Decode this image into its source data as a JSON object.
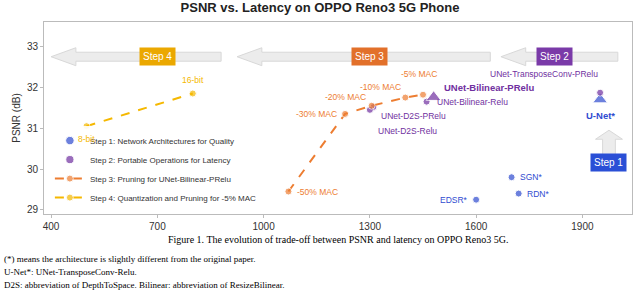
{
  "chart_data": {
    "type": "scatter",
    "title": "PSNR vs. Latency on OPPO Reno3 5G Phone",
    "y_label": "PSNR (dB)",
    "xlim": [
      380,
      2040
    ],
    "xticks": [
      400,
      700,
      1000,
      1300,
      1600,
      1900
    ],
    "ylim": [
      28.9,
      33.6
    ],
    "yticks": [
      29,
      30,
      31,
      32,
      33
    ],
    "grid": false,
    "legend": "lower left",
    "series": [
      {
        "name": "Step 1: Network Architectures for Quality",
        "type": "scatter",
        "color": "#2f4bd0",
        "marker": [
          "circle",
          "circle",
          "circle",
          "triangle-up"
        ],
        "x": [
          1700,
          1720,
          1600,
          1950
        ],
        "values": [
          29.8,
          29.4,
          29.25,
          31.7
        ],
        "labels": [
          "SGN*",
          "RDN*",
          "EDSR*",
          "U-Net*"
        ]
      },
      {
        "name": "Step 2: Portable Operations for Latency",
        "type": "scatter",
        "color": "#7030a0",
        "marker": [
          "circle",
          "circle",
          "circle",
          "circle",
          "triangle-up"
        ],
        "x": [
          1950,
          1460,
          1310,
          1300,
          1480
        ],
        "values": [
          31.87,
          31.65,
          31.52,
          31.45,
          31.76
        ],
        "labels": [
          "UNet-TransposeConv-PRelu",
          "UNet-Bilinear-Relu",
          "UNet-D2S-PRelu",
          "UNet-D2S-Relu",
          "UNet-Bilinear-PRelu"
        ]
      },
      {
        "name": "Step 3: Pruning for UNet-Bilinear-PRelu",
        "type": "line",
        "line_style": "dashed",
        "color": "#ed7d31",
        "marker": "circle",
        "x": [
          1070,
          1230,
          1305,
          1400,
          1450
        ],
        "values": [
          29.45,
          31.35,
          31.55,
          31.75,
          31.82
        ],
        "labels": [
          "-50% MAC",
          "-30% MAC",
          "-20% MAC",
          "-10% MAC",
          "-5% MAC"
        ]
      },
      {
        "name": "Step 4: Quantization and Pruning for -5% MAC",
        "type": "line",
        "line_style": "dashed",
        "color": "#f5b800",
        "marker": "circle",
        "x": [
          500,
          800
        ],
        "values": [
          31.05,
          31.85
        ],
        "labels": [
          "8-bit",
          "16-bit"
        ]
      }
    ],
    "steps": [
      {
        "label": "Step 4",
        "color": "#eba800"
      },
      {
        "label": "Step 3",
        "color": "#e2702a"
      },
      {
        "label": "Step 2",
        "color": "#7a3aa8"
      },
      {
        "label": "Step 1",
        "color": "#2a4fd6"
      }
    ],
    "caption": "Figure 1. The evolution of trade-off between PSNR and latency on OPPO Reno3 5G.",
    "notes": [
      "(*) means the architecture is slightly different from the original paper.",
      "U-Net*: UNet-TransposeConv-Relu.",
      "D2S: abbreviation of DepthToSpace. Bilinear: abbreviation of ResizeBilinear."
    ]
  }
}
